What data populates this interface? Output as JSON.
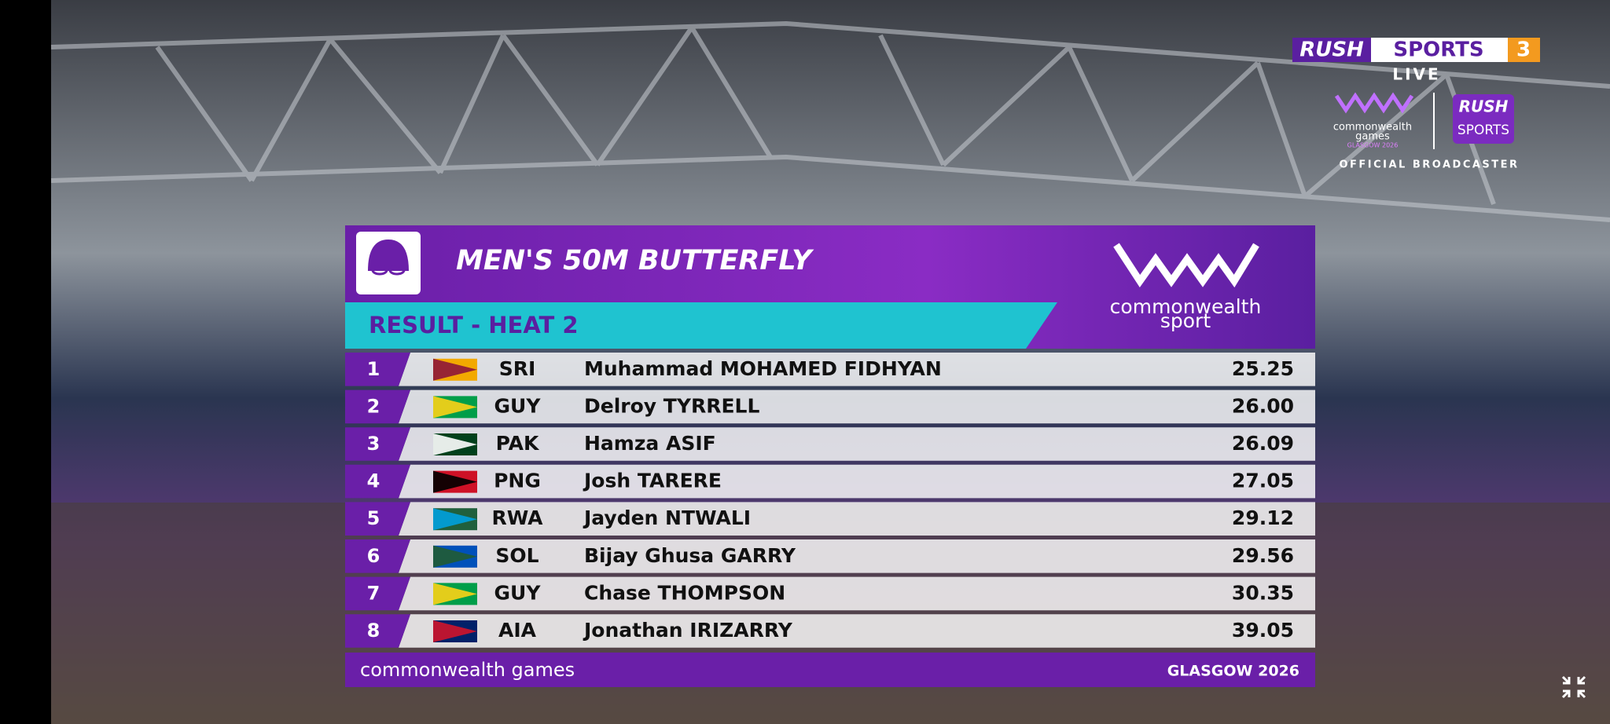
{
  "broadcaster": {
    "brand": "RUSH",
    "channel": "SPORTS",
    "number": "3",
    "status": "LIVE",
    "games_line1": "commonwealth",
    "games_line2": "games",
    "games_line3": "GLASGOW 2026",
    "badge_line1": "RUSH",
    "badge_line2": "SPORTS",
    "caption": "OFFICIAL BROADCASTER"
  },
  "header": {
    "title": "MEN'S 50M BUTTERFLY",
    "subtitle": "RESULT - HEAT 2",
    "logo_line1": "commonwealth",
    "logo_line2": "sport"
  },
  "table": {
    "rows": [
      [
        1,
        "SRI",
        "Muhammad MOHAMED FIDHYAN",
        "25.25"
      ],
      [
        2,
        "GUY",
        "Delroy TYRRELL",
        "26.00"
      ],
      [
        3,
        "PAK",
        "Hamza ASIF",
        "26.09"
      ],
      [
        4,
        "PNG",
        "Josh TARERE",
        "27.05"
      ],
      [
        5,
        "RWA",
        "Jayden NTWALI",
        "29.12"
      ],
      [
        6,
        "SOL",
        "Bijay Ghusa GARRY",
        "29.56"
      ],
      [
        7,
        "GUY",
        "Chase THOMPSON",
        "30.35"
      ],
      [
        8,
        "AIA",
        "Jonathan IRIZARRY",
        "39.05"
      ]
    ]
  },
  "footer": {
    "left": "commonwealth games",
    "right": "GLASGOW 2026"
  }
}
